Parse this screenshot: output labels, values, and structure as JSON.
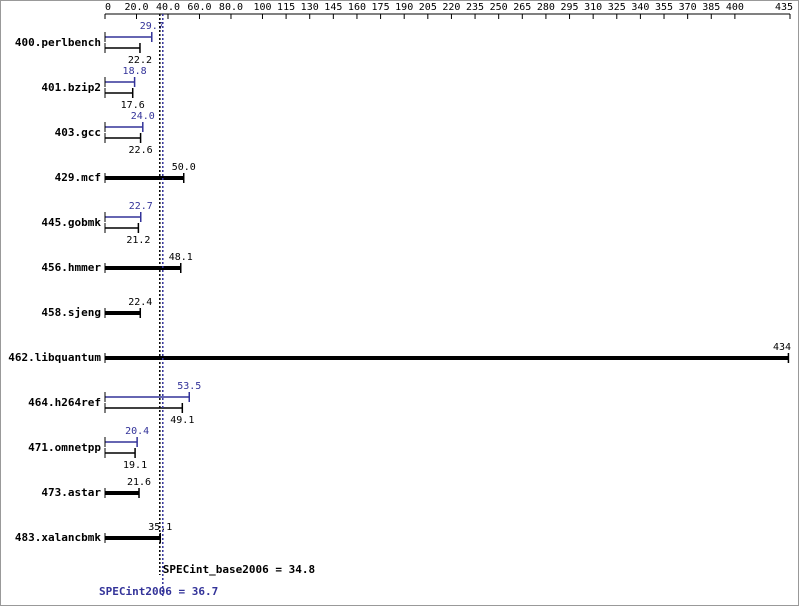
{
  "chart_data": {
    "type": "bar",
    "orientation": "horizontal",
    "categories": [
      "400.perlbench",
      "401.bzip2",
      "403.gcc",
      "429.mcf",
      "445.gobmk",
      "456.hmmer",
      "458.sjeng",
      "462.libquantum",
      "464.h264ref",
      "471.omnetpp",
      "473.astar",
      "483.xalancbmk"
    ],
    "series": [
      {
        "color": "#000000",
        "values": [
          22.2,
          17.6,
          22.6,
          50.0,
          21.2,
          48.1,
          22.4,
          434,
          49.1,
          19.1,
          21.6,
          35.1
        ],
        "value_labels": [
          "22.2",
          "17.6",
          "22.6",
          "50.0",
          "21.2",
          "48.1",
          "22.4",
          "434",
          "49.1",
          "19.1",
          "21.6",
          "35.1"
        ]
      },
      {
        "color": "#333399",
        "values": [
          29.7,
          18.8,
          24.0,
          null,
          22.7,
          null,
          null,
          null,
          53.5,
          20.4,
          null,
          null
        ],
        "value_labels": [
          "29.7",
          "18.8",
          "24.0",
          null,
          "22.7",
          null,
          null,
          null,
          "53.5",
          "20.4",
          null,
          null
        ]
      }
    ],
    "xlim": [
      0,
      435
    ],
    "xticks": [
      0,
      {
        "value": 20,
        "label": "20.0"
      },
      {
        "value": 40,
        "label": "40.0"
      },
      {
        "value": 60,
        "label": "60.0"
      },
      {
        "value": 80,
        "label": "80.0"
      },
      100,
      115,
      130,
      145,
      160,
      175,
      190,
      205,
      220,
      235,
      250,
      265,
      280,
      295,
      310,
      325,
      340,
      355,
      370,
      385,
      400,
      435
    ],
    "reference_lines": [
      {
        "label": "SPECint_base2006 = 34.8",
        "value": 34.8,
        "color": "#000000"
      },
      {
        "label": "SPECint2006 = 36.7",
        "value": 36.7,
        "color": "#333399"
      }
    ]
  }
}
